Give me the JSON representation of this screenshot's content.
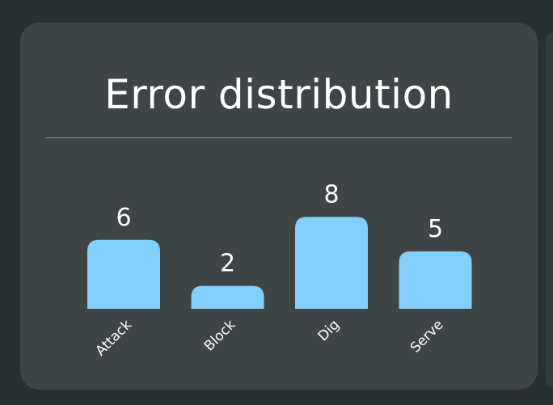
{
  "chart_data": {
    "type": "bar",
    "title": "Error distribution",
    "categories": [
      "Attack",
      "Block",
      "Dig",
      "Serve"
    ],
    "values": [
      6,
      2,
      8,
      5
    ],
    "xlabel": "",
    "ylabel": "",
    "ylim": [
      0,
      8
    ],
    "grid": false,
    "data_labels": true
  },
  "colors": {
    "background": "#2a2f31",
    "card": "#3f4546",
    "bar": "#82cffb",
    "text": "#ffffff",
    "divider": "#8a9091"
  }
}
